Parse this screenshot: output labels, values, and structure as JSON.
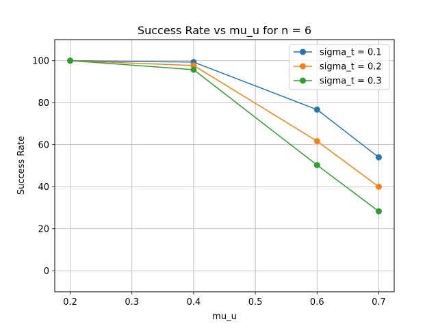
{
  "chart_data": {
    "type": "line",
    "title": "Success Rate vs mu_u for n = 6",
    "xlabel": "mu_u",
    "ylabel": "Success Rate",
    "x": [
      0.2,
      0.4,
      0.6,
      0.7
    ],
    "xlim": [
      0.175,
      0.725
    ],
    "ylim": [
      -10,
      110
    ],
    "xticks": [
      0.2,
      0.3,
      0.4,
      0.5,
      0.6,
      0.7
    ],
    "xtick_labels": [
      "0.2",
      "0.3",
      "0.4",
      "0.5",
      "0.6",
      "0.7"
    ],
    "yticks": [
      0,
      20,
      40,
      60,
      80,
      100
    ],
    "ytick_labels": [
      "0",
      "20",
      "40",
      "60",
      "80",
      "100"
    ],
    "grid": true,
    "legend_position": "top-right",
    "series": [
      {
        "name": "sigma_t = 0.1",
        "color": "#1f77b4",
        "values": [
          100,
          99.3,
          76.7,
          54.0
        ]
      },
      {
        "name": "sigma_t = 0.2",
        "color": "#ff7f0e",
        "values": [
          100,
          97.7,
          61.7,
          40.0
        ]
      },
      {
        "name": "sigma_t = 0.3",
        "color": "#2ca02c",
        "values": [
          100,
          95.7,
          50.3,
          28.3
        ]
      }
    ]
  }
}
